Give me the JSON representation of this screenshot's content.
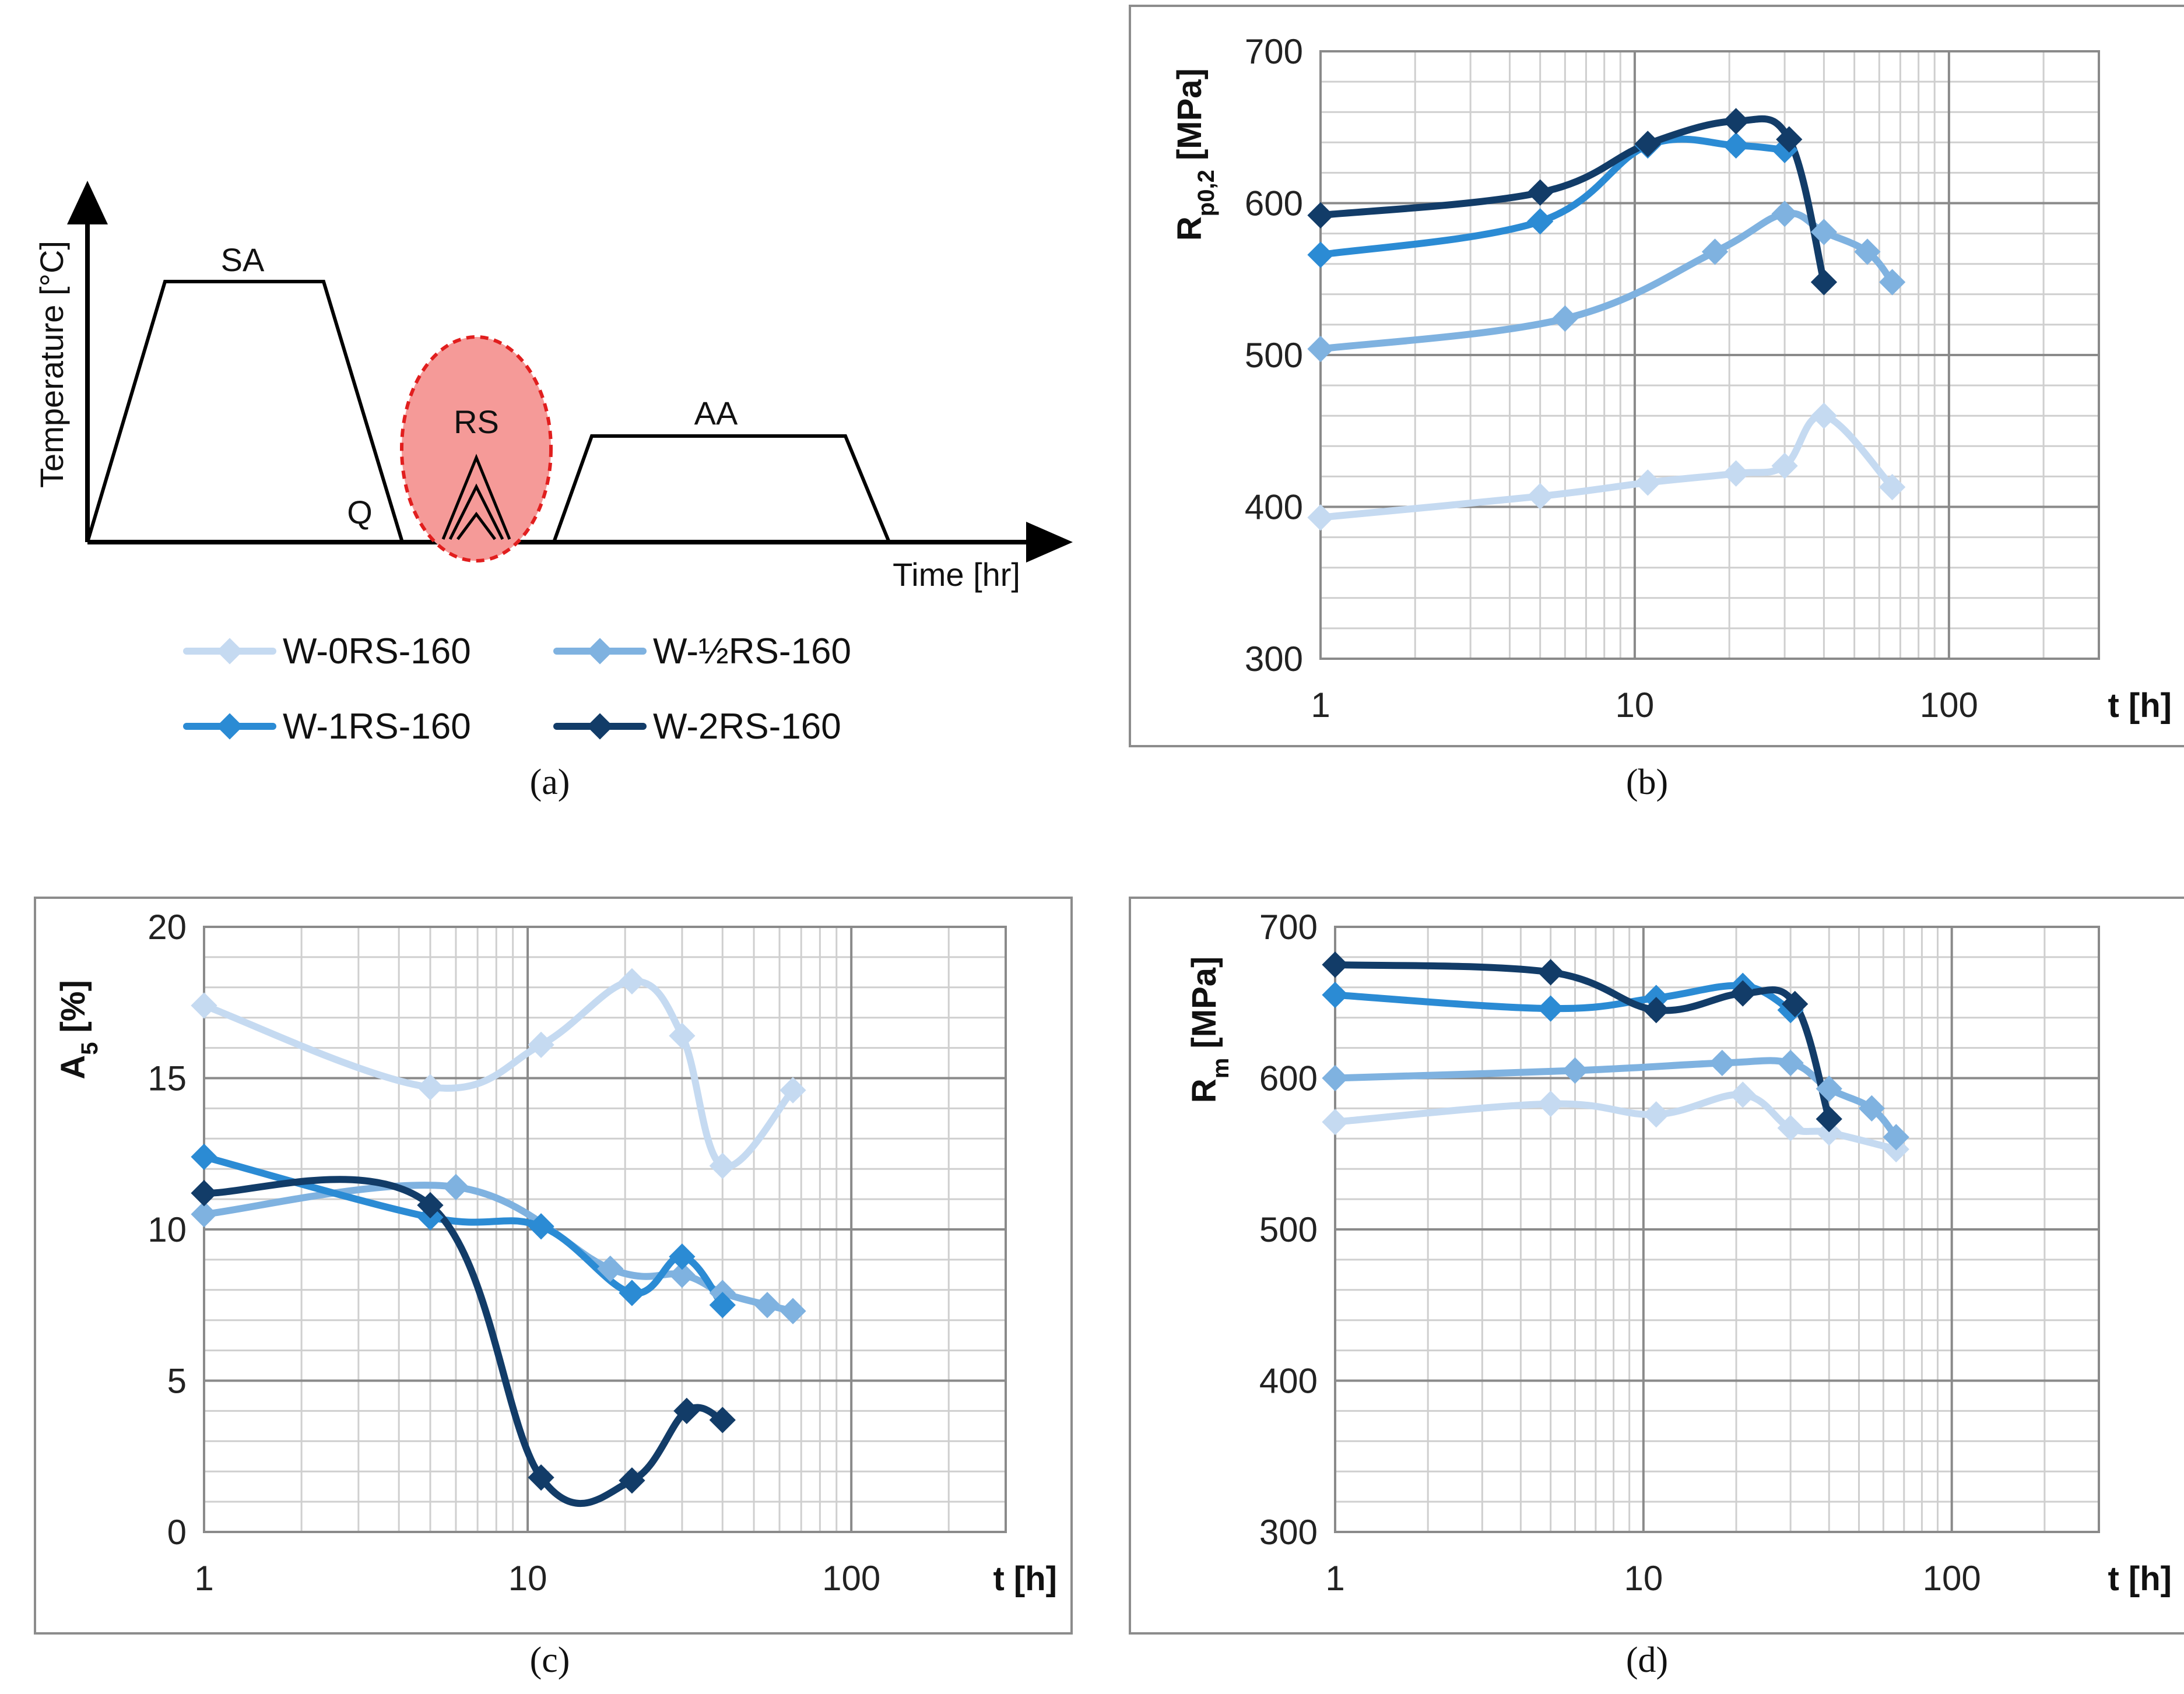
{
  "panels": {
    "a": {
      "caption": "(a)",
      "ylabel": "Temperature [°C]",
      "xlabel": "Time [hr]",
      "stages": [
        "SA",
        "Q",
        "RS",
        "AA"
      ]
    },
    "b": {
      "caption": "(b)"
    },
    "c": {
      "caption": "(c)"
    },
    "d": {
      "caption": "(d)"
    }
  },
  "legend": [
    {
      "name": "W-0RS-160",
      "color": "#c5daf1"
    },
    {
      "name": "W-½RS-160",
      "color": "#7fb2e0"
    },
    {
      "name": "W-1RS-160",
      "color": "#2b8bd4"
    },
    {
      "name": "W-2RS-160",
      "color": "#123c68"
    }
  ],
  "chart_data": [
    {
      "id": "b",
      "type": "line",
      "xscale": "log",
      "xlabel": "t [h]",
      "ylabel_main": "R",
      "ylabel_sub": "p0,2",
      "ylabel_unit": "[MPa]",
      "xlim": [
        1,
        300
      ],
      "ylim": [
        300,
        700
      ],
      "yticks": [
        300,
        400,
        500,
        600,
        700
      ],
      "xticks": [
        1,
        10,
        100
      ],
      "series": [
        {
          "name": "W-0RS-160",
          "x": [
            1,
            5,
            11,
            21,
            30,
            40,
            66
          ],
          "y": [
            393,
            407,
            416,
            422,
            427,
            460,
            413
          ]
        },
        {
          "name": "W-½RS-160",
          "x": [
            1,
            6,
            18,
            30,
            40,
            55,
            66
          ],
          "y": [
            504,
            524,
            568,
            593,
            581,
            568,
            548
          ]
        },
        {
          "name": "W-1RS-160",
          "x": [
            1,
            5,
            11,
            21,
            30
          ],
          "y": [
            566,
            588,
            638,
            638,
            635
          ]
        },
        {
          "name": "W-2RS-160",
          "x": [
            1,
            5,
            11,
            21,
            31,
            40
          ],
          "y": [
            592,
            607,
            639,
            654,
            642,
            548
          ]
        }
      ]
    },
    {
      "id": "c",
      "type": "line",
      "xscale": "log",
      "xlabel": "t [h]",
      "ylabel_main": "A",
      "ylabel_sub": "5",
      "ylabel_unit": "[%]",
      "xlim": [
        1,
        300
      ],
      "ylim": [
        0,
        20
      ],
      "yticks": [
        0,
        5,
        10,
        15,
        20
      ],
      "xticks": [
        1,
        10,
        100
      ],
      "series": [
        {
          "name": "W-0RS-160",
          "x": [
            1,
            5,
            11,
            21,
            30,
            40,
            66
          ],
          "y": [
            17.4,
            14.7,
            16.1,
            18.2,
            16.4,
            12.1,
            14.6
          ]
        },
        {
          "name": "W-½RS-160",
          "x": [
            1,
            6,
            18,
            30,
            40,
            55,
            66
          ],
          "y": [
            10.5,
            11.4,
            8.7,
            8.5,
            7.9,
            7.5,
            7.3
          ]
        },
        {
          "name": "W-1RS-160",
          "x": [
            1,
            5,
            11,
            21,
            30,
            40
          ],
          "y": [
            12.4,
            10.4,
            10.1,
            7.9,
            9.1,
            7.5
          ]
        },
        {
          "name": "W-2RS-160",
          "x": [
            1,
            5,
            11,
            21,
            31,
            40
          ],
          "y": [
            11.2,
            10.8,
            1.8,
            1.7,
            4.0,
            3.7
          ]
        }
      ]
    },
    {
      "id": "d",
      "type": "line",
      "xscale": "log",
      "xlabel": "t [h]",
      "ylabel_main": "R",
      "ylabel_sub": "m",
      "ylabel_unit": "[MPa]",
      "xlim": [
        1,
        300
      ],
      "ylim": [
        300,
        700
      ],
      "yticks": [
        300,
        400,
        500,
        600,
        700
      ],
      "xticks": [
        1,
        10,
        100
      ],
      "series": [
        {
          "name": "W-0RS-160",
          "x": [
            1,
            5,
            11,
            21,
            30,
            40,
            66
          ],
          "y": [
            571,
            583,
            576,
            589,
            567,
            564,
            553
          ]
        },
        {
          "name": "W-½RS-160",
          "x": [
            1,
            6,
            18,
            30,
            40,
            55,
            66
          ],
          "y": [
            600,
            605,
            610,
            610,
            593,
            580,
            561
          ]
        },
        {
          "name": "W-1RS-160",
          "x": [
            1,
            5,
            11,
            21,
            30
          ],
          "y": [
            655,
            646,
            653,
            661,
            645
          ]
        },
        {
          "name": "W-2RS-160",
          "x": [
            1,
            5,
            11,
            21,
            31,
            40
          ],
          "y": [
            675,
            670,
            645,
            656,
            649,
            573
          ]
        }
      ]
    }
  ]
}
